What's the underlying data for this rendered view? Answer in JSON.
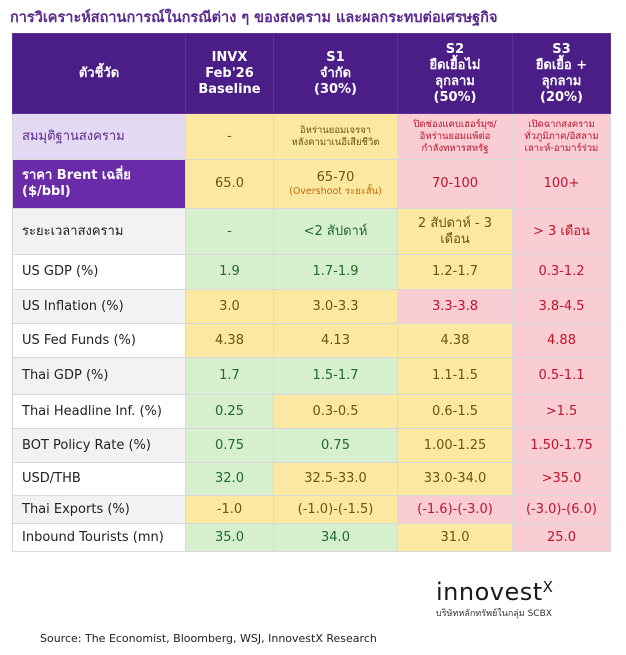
{
  "title": "การวิเคราะห์สถานการณ์ในกรณีต่าง ๆ ของสงคราม และผลกระทบต่อเศรษฐกิจ",
  "table": {
    "header": [
      [
        "ตัวชี้วัด"
      ],
      [
        "INVX",
        "Feb'26",
        "Baseline"
      ],
      [
        "S1",
        "จำกัด",
        "(30%)"
      ],
      [
        "S2",
        "ยืดเยื้อไม่",
        "ลุกลาม",
        "(50%)"
      ],
      [
        "S3",
        "ยืดเยื้อ +",
        "ลุกลาม",
        "(20%)"
      ]
    ],
    "rows": [
      [
        "สมมุติฐานสงคราม",
        "-",
        [
          "อิหร่านยอมเจรจา",
          "หลังคามาเนอีเสียชีวิต"
        ],
        [
          "ปิดช่องแคบเฮอร์มุซ/",
          "อิหร่านยอมแพ้ต่อ",
          "กำลังทหารสหรัฐ"
        ],
        [
          "เปิดฉากสงคราม",
          "ทั่วภูมิภาค/อิสลาม",
          "เลาะห์-อามาร์ร่วม"
        ]
      ],
      [
        [
          "ราคา Brent เฉลี่ย",
          "($/bbl)"
        ],
        "65.0",
        [
          "65-70",
          "(Overshoot ระยะสั้น)"
        ],
        "70-100",
        "100+"
      ],
      [
        "ระยะเวลาสงคราม",
        "-",
        "<2 สัปดาห์",
        [
          "2 สัปดาห์ - 3",
          "เดือน"
        ],
        "> 3 เดือน"
      ],
      [
        "US GDP (%)",
        "1.9",
        "1.7-1.9",
        "1.2-1.7",
        "0.3-1.2"
      ],
      [
        "US Inflation (%)",
        "3.0",
        "3.0-3.3",
        "3.3-3.8",
        "3.8-4.5"
      ],
      [
        "US Fed Funds (%)",
        "4.38",
        "4.13",
        "4.38",
        "4.88"
      ],
      [
        "Thai GDP (%)",
        "1.7",
        "1.5-1.7",
        "1.1-1.5",
        "0.5-1.1"
      ],
      [
        "Thai Headline Inf. (%)",
        "0.25",
        "0.3-0.5",
        "0.6-1.5",
        ">1.5"
      ],
      [
        "BOT Policy Rate (%)",
        "0.75",
        "0.75",
        "1.00-1.25",
        "1.50-1.75"
      ],
      [
        "USD/THB",
        "32.0",
        "32.5-33.0",
        "33.0-34.0",
        ">35.0"
      ],
      [
        "Thai Exports (%)",
        "-1.0",
        "(-1.0)-(-1.5)",
        "(-1.6)-(-3.0)",
        "(-3.0)-(6.0)"
      ],
      [
        "Inbound Tourists (mn)",
        "35.0",
        "34.0",
        "31.0",
        "25.0"
      ]
    ]
  },
  "logo": {
    "name": "innovest",
    "mark": "X",
    "tagline": "บริษัทหลักทรัพย์ในกลุ่ม SCBX"
  },
  "source": "Source: The Economist, Bloomberg, WSJ, InnovestX Research"
}
